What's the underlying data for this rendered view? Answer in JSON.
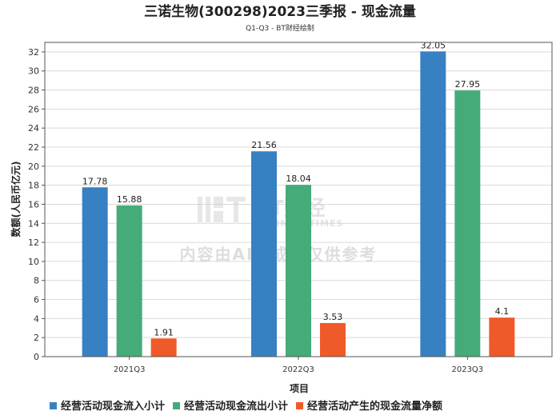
{
  "chart_data": {
    "type": "bar",
    "title": "三诺生物(300298)2023三季报 - 现金流量",
    "subtitle": "Q1-Q3 - BT财经绘制",
    "xlabel": "项目",
    "ylabel": "数额(人民币亿元)",
    "categories": [
      "2021Q3",
      "2022Q3",
      "2023Q3"
    ],
    "ylim": [
      0,
      33
    ],
    "yticks": [
      0,
      2,
      4,
      6,
      8,
      10,
      12,
      14,
      16,
      18,
      20,
      22,
      24,
      26,
      28,
      30,
      32
    ],
    "grid": true,
    "legend_position": "bottom",
    "series": [
      {
        "name": "经营活动现金流入小计",
        "color": "#3781c2",
        "values": [
          17.78,
          21.56,
          32.05
        ],
        "labels": [
          "17.78",
          "21.56",
          "32.05"
        ]
      },
      {
        "name": "经营活动现金流出小计",
        "color": "#45ab78",
        "values": [
          15.88,
          18.04,
          27.95
        ],
        "labels": [
          "15.88",
          "18.04",
          "27.95"
        ]
      },
      {
        "name": "经营活动产生的现金流量净额",
        "color": "#f05a28",
        "values": [
          1.91,
          3.53,
          4.1
        ],
        "labels": [
          "1.91",
          "3.53",
          "4.1"
        ]
      }
    ]
  },
  "watermark": {
    "brand": "BT财经",
    "brand_en": "BUSINESSTIMES",
    "ai_notice": "内容由AI生成，仅供参考"
  }
}
